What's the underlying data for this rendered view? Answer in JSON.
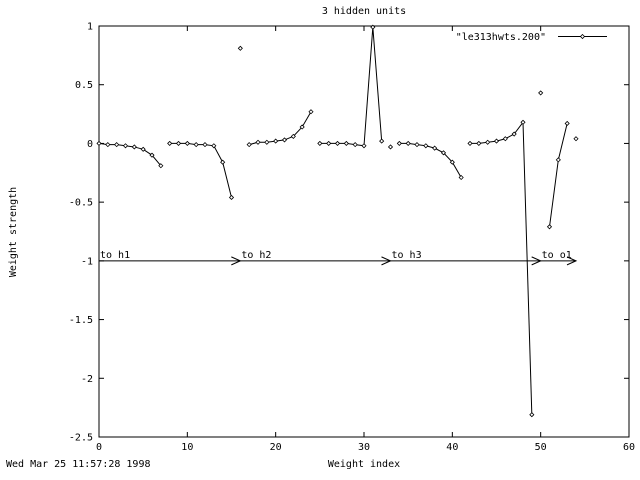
{
  "chart_data": {
    "type": "line",
    "title": "3 hidden units",
    "xlabel": "Weight index",
    "ylabel": "Weight strength",
    "xlim": [
      0,
      60
    ],
    "ylim": [
      -2.5,
      1
    ],
    "xticks": [
      0,
      10,
      20,
      30,
      40,
      50,
      60
    ],
    "yticks": [
      1,
      0.5,
      0,
      -0.5,
      -1,
      -1.5,
      -2,
      -2.5
    ],
    "xtick_labels": [
      "0",
      "10",
      "20",
      "30",
      "40",
      "50",
      "60"
    ],
    "ytick_labels": [
      "1",
      "0.5",
      "0",
      "-0.5",
      "-1",
      "-1.5",
      "-2",
      "-2.5"
    ],
    "grid": false,
    "legend_position": "top-right",
    "series": [
      {
        "name": "\"le313hwts.200\"",
        "segments": [
          {
            "x": [
              0,
              1,
              2,
              3,
              4,
              5,
              6,
              7
            ],
            "y": [
              0.0,
              -0.01,
              -0.01,
              -0.02,
              -0.03,
              -0.05,
              -0.1,
              -0.19
            ]
          },
          {
            "x": [
              8,
              9,
              10,
              11,
              12,
              13,
              14,
              15
            ],
            "y": [
              0.0,
              0.0,
              0.0,
              -0.01,
              -0.01,
              -0.02,
              -0.16,
              -0.46
            ]
          },
          {
            "x": [
              16
            ],
            "y": [
              0.81
            ]
          },
          {
            "x": [
              17,
              18,
              19,
              20,
              21,
              22,
              23,
              24
            ],
            "y": [
              -0.01,
              0.01,
              0.01,
              0.02,
              0.03,
              0.06,
              0.14,
              0.27
            ]
          },
          {
            "x": [
              25,
              26,
              27,
              28,
              29,
              30,
              31,
              32
            ],
            "y": [
              0.0,
              0.0,
              0.0,
              0.0,
              -0.01,
              -0.02,
              0.99,
              0.02
            ]
          },
          {
            "x": [
              33
            ],
            "y": [
              -0.03
            ]
          },
          {
            "x": [
              34,
              35,
              36,
              37,
              38,
              39,
              40,
              41
            ],
            "y": [
              0.0,
              0.0,
              -0.01,
              -0.02,
              -0.04,
              -0.08,
              -0.16,
              -0.29
            ]
          },
          {
            "x": [
              42,
              43,
              44,
              45,
              46,
              47,
              48,
              49
            ],
            "y": [
              0.0,
              0.0,
              0.01,
              0.02,
              0.04,
              0.08,
              0.18,
              -2.31
            ]
          },
          {
            "x": [
              50
            ],
            "y": [
              0.43
            ]
          },
          {
            "x": [
              51,
              52,
              53
            ],
            "y": [
              -0.71,
              -0.14,
              0.17
            ]
          },
          {
            "x": [
              54
            ],
            "y": [
              0.04
            ]
          }
        ]
      }
    ],
    "annotations": [
      {
        "label": "to h1",
        "x_start": 0,
        "x_end": 16,
        "y": -1
      },
      {
        "label": "to h2",
        "x_start": 16,
        "x_end": 33,
        "y": -1
      },
      {
        "label": "to h3",
        "x_start": 33,
        "x_end": 50,
        "y": -1
      },
      {
        "label": "to o1",
        "x_start": 50,
        "x_end": 54,
        "y": -1
      }
    ]
  },
  "footer": {
    "timestamp": "Wed Mar 25 11:57:28 1998"
  }
}
